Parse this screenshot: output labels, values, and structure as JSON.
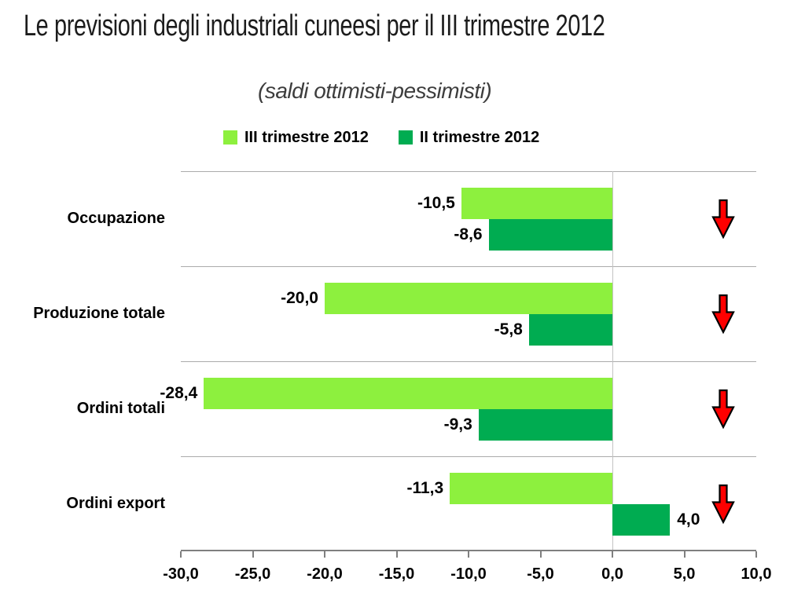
{
  "title": "Le previsioni degli industriali cuneesi per il III trimestre 2012",
  "subtitle": "(saldi ottimisti-pessimisti)",
  "chart_data": {
    "type": "bar",
    "orientation": "horizontal",
    "title": "Le previsioni degli industriali cuneesi per il III trimestre 2012",
    "subtitle": "(saldi ottimisti-pessimisti)",
    "categories": [
      "Occupazione",
      "Produzione totale",
      "Ordini totali",
      "Ordini export"
    ],
    "series": [
      {
        "name": "III trimestre 2012",
        "color": "#8DF03E",
        "values": [
          -10.5,
          -20.0,
          -28.4,
          -11.3
        ],
        "labels": [
          "-10,5",
          "-20,0",
          "-28,4",
          "-11,3"
        ]
      },
      {
        "name": "II trimestre 2012",
        "color": "#00AC51",
        "values": [
          -8.6,
          -5.8,
          -9.3,
          4.0
        ],
        "labels": [
          "-8,6",
          "-5,8",
          "-9,3",
          "4,0"
        ]
      }
    ],
    "xlim": [
      -30,
      10
    ],
    "x_ticks": [
      -30,
      -25,
      -20,
      -15,
      -10,
      -5,
      0,
      5,
      10
    ],
    "x_tick_labels": [
      "-30,0",
      "-25,0",
      "-20,0",
      "-15,0",
      "-10,0",
      "-5,0",
      "0,0",
      "5,0",
      "10,0"
    ],
    "grid": "horizontal-separators-on",
    "legend_position": "top",
    "trend_arrows": [
      "down",
      "down",
      "down",
      "down"
    ],
    "arrow_color": "#FE0000",
    "arrow_outline_color": "#000000"
  }
}
